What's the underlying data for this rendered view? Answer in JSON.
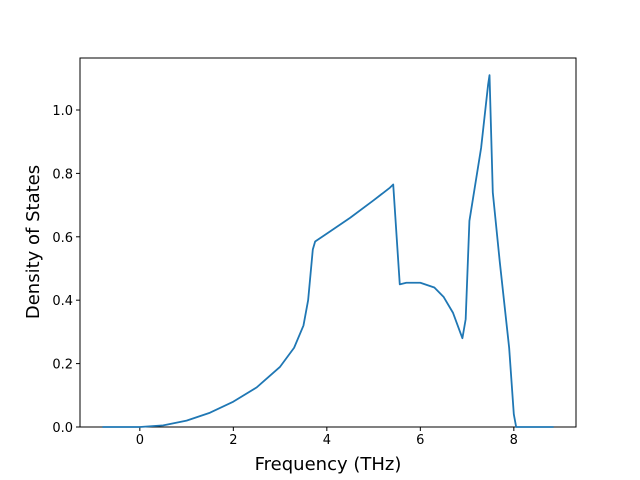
{
  "chart_data": {
    "type": "line",
    "x_label": "Frequency (THz)",
    "y_label": "Density of States",
    "x": [
      -0.8,
      0,
      0.5,
      1,
      1.5,
      2,
      2.5,
      3,
      3.3,
      3.5,
      3.6,
      3.65,
      3.7,
      3.75,
      4,
      4.5,
      5,
      5.35,
      5.42,
      5.56,
      5.7,
      6,
      6.3,
      6.5,
      6.7,
      6.85,
      6.9,
      6.97,
      7.05,
      7.3,
      7.45,
      7.48,
      7.55,
      7.7,
      7.9,
      8.0,
      8.05,
      8.85
    ],
    "values": [
      0,
      0,
      0.005,
      0.02,
      0.045,
      0.08,
      0.125,
      0.19,
      0.25,
      0.32,
      0.4,
      0.48,
      0.56,
      0.585,
      0.61,
      0.66,
      0.715,
      0.755,
      0.765,
      0.45,
      0.455,
      0.455,
      0.44,
      0.41,
      0.36,
      0.3,
      0.28,
      0.34,
      0.65,
      0.88,
      1.08,
      1.11,
      0.74,
      0.52,
      0.25,
      0.04,
      0,
      0
    ],
    "color": "#1f77b4",
    "xlim": [
      -1.28,
      9.33
    ],
    "ylim": [
      0,
      1.164
    ],
    "xticks": [
      0,
      2,
      4,
      6,
      8
    ],
    "yticks": [
      {
        "value": 0,
        "label": "0.0"
      },
      0.2,
      0.4,
      0.6,
      0.8,
      {
        "value": 1,
        "label": "1.0"
      }
    ]
  }
}
